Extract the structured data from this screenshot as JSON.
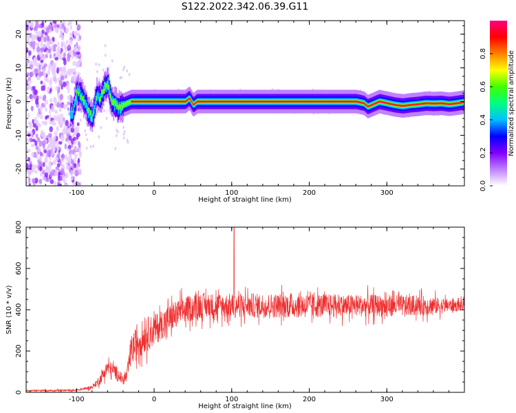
{
  "title": "S122.2022.342.06.39.G11",
  "chart_data": [
    {
      "type": "heatmap",
      "xlabel": "Height of straight line (km)",
      "ylabel": "Frequency (Hz)",
      "xlim": [
        -165,
        400
      ],
      "ylim": [
        -25,
        24
      ],
      "xticks": [
        -100,
        0,
        100,
        200,
        300
      ],
      "yticks": [
        -20,
        -10,
        0,
        10,
        20
      ],
      "ridge": {
        "x": [
          -105,
          -100,
          -95,
          -90,
          -85,
          -80,
          -75,
          -70,
          -65,
          -60,
          -55,
          -50,
          -45,
          -40,
          -30,
          -20,
          0,
          20,
          40,
          45,
          50,
          55,
          100,
          200,
          250,
          260,
          270,
          275,
          280,
          290,
          300,
          310,
          320,
          330,
          340,
          350,
          360,
          370,
          380,
          390,
          398
        ],
        "y": [
          -3,
          3,
          2,
          0,
          -3,
          -5,
          2,
          1,
          4,
          5,
          0,
          -1,
          -2,
          -1,
          0,
          0,
          0,
          0,
          0,
          1,
          -1,
          0,
          0,
          0,
          0,
          0,
          -0.5,
          -1.5,
          -1,
          0,
          -0.5,
          -1,
          -1.3,
          -1,
          -0.8,
          -0.5,
          -0.6,
          -0.5,
          -0.8,
          -0.5,
          -0.2
        ]
      },
      "noise_region_x": [
        -165,
        -105
      ],
      "colorbar": {
        "label": "Normalized spectral amplitude",
        "range": [
          0,
          1
        ],
        "ticks": [
          "0.0",
          "0.2",
          "0.4",
          "0.6",
          "0.8"
        ],
        "colors": [
          "#ffffff",
          "#c080ff",
          "#8000ff",
          "#0000ff",
          "#00c0ff",
          "#00ff80",
          "#40ff00",
          "#ffff00",
          "#ff8000",
          "#ff0000",
          "#ff0080"
        ]
      }
    },
    {
      "type": "line",
      "xlabel": "Height of straight line (km)",
      "ylabel": "SNR (10 * v/v)",
      "xlim": [
        -165,
        400
      ],
      "ylim": [
        0,
        800
      ],
      "xticks": [
        -100,
        0,
        100,
        200,
        300
      ],
      "yticks": [
        0,
        200,
        400,
        600,
        800
      ],
      "color": "#ee3030",
      "envelope": {
        "x": [
          -165,
          -100,
          -80,
          -70,
          -60,
          -50,
          -40,
          -35,
          -30,
          -20,
          -10,
          0,
          10,
          20,
          30,
          40,
          50,
          60,
          80,
          100,
          150,
          200,
          250,
          300,
          350,
          400
        ],
        "mean": [
          8,
          10,
          25,
          60,
          120,
          100,
          60,
          80,
          200,
          250,
          280,
          300,
          330,
          360,
          380,
          400,
          410,
          420,
          420,
          420,
          420,
          420,
          420,
          420,
          420,
          420
        ],
        "spread": [
          6,
          8,
          15,
          40,
          60,
          60,
          40,
          60,
          120,
          140,
          140,
          130,
          120,
          110,
          110,
          110,
          105,
          105,
          100,
          100,
          100,
          100,
          90,
          90,
          80,
          40
        ]
      },
      "peak": {
        "x": 103,
        "y": 800
      }
    }
  ]
}
